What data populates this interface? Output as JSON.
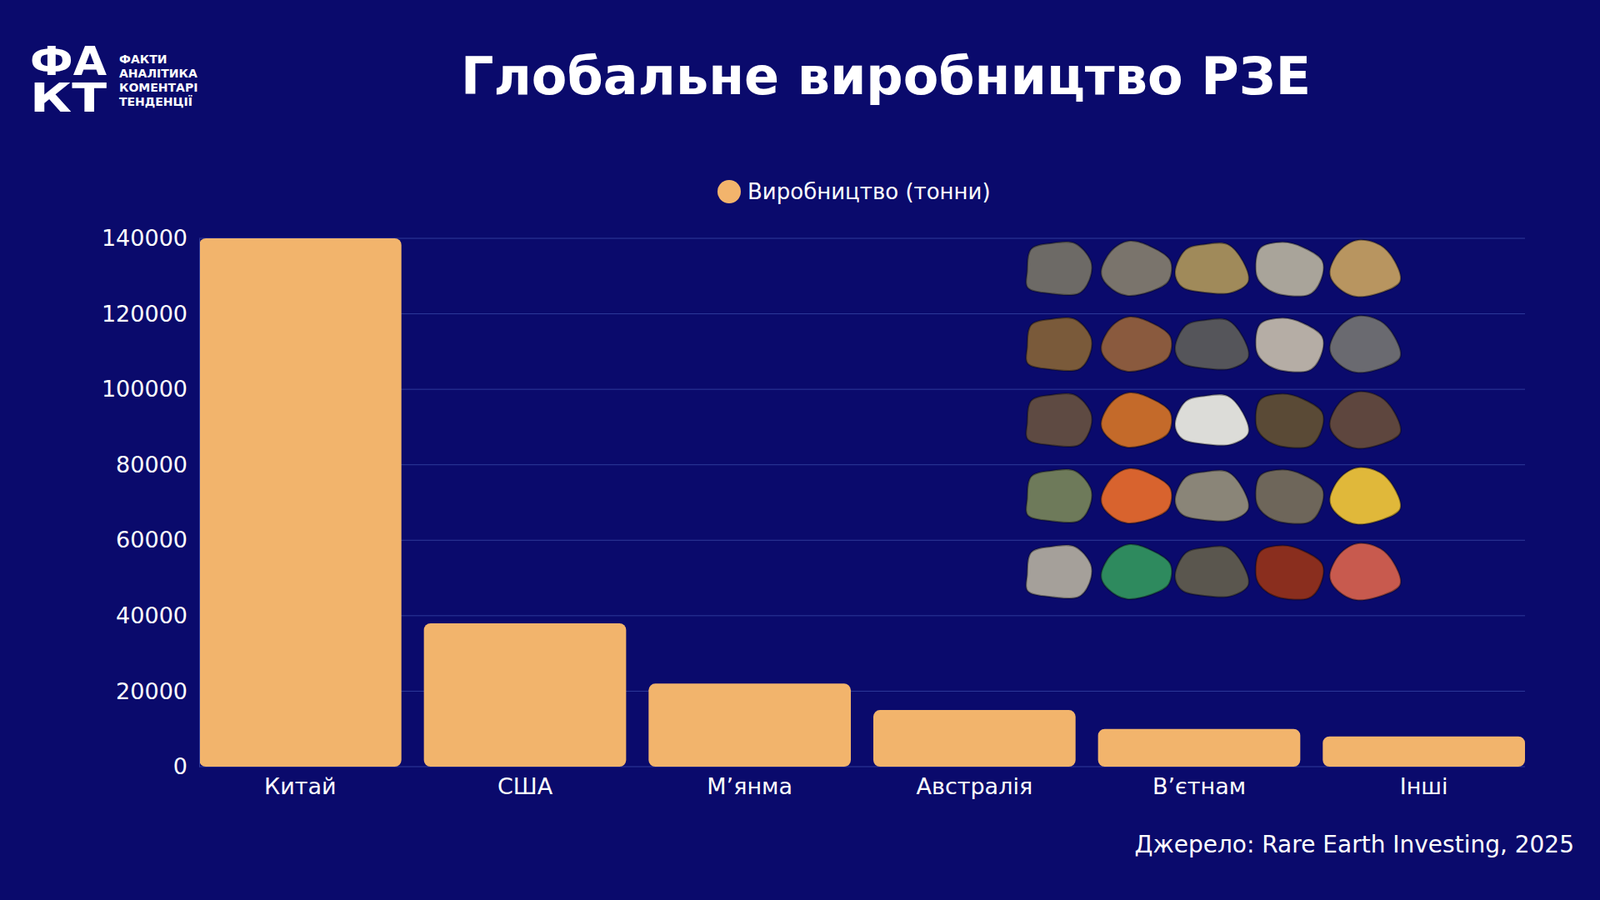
{
  "chart_data": {
    "type": "bar",
    "title": "Глобальне виробництво РЗЕ",
    "categories": [
      "Китай",
      "США",
      "М’янма",
      "Австралія",
      "В’єтнам",
      "Інші"
    ],
    "series": [
      {
        "name": "Виробництво (тонни)",
        "color": "#f2b46c",
        "values": [
          140000,
          38000,
          22000,
          15000,
          10000,
          8000
        ]
      }
    ],
    "ylim": [
      0,
      140000
    ],
    "yticks": [
      0,
      20000,
      40000,
      60000,
      80000,
      100000,
      120000,
      140000
    ],
    "grid": true,
    "legend": "top",
    "source": "Джерело: Rare Earth Investing, 2025"
  },
  "logo": {
    "mark": [
      "ФА",
      "КТ"
    ],
    "lines": [
      "ФАКТИ",
      "АНАЛІТИКА",
      "КОМЕНТАРІ",
      "ТЕНДЕНЦІЇ"
    ]
  }
}
